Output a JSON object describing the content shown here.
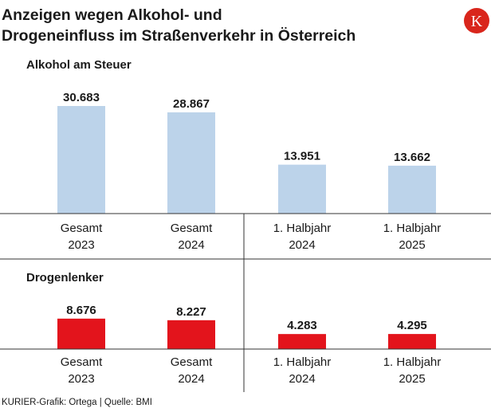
{
  "title_lines": [
    "Anzeigen wegen Alkohol- und",
    "Drogeneinfluss im Straßenverkehr in Österreich"
  ],
  "logo_letter": "K",
  "colors": {
    "alcohol": "#bcd3ea",
    "drugs": "#e3141c",
    "logo": "#d9261c",
    "axis": "#333333"
  },
  "chart_data": [
    {
      "type": "bar",
      "title": "Alkohol am Steuer",
      "categories": [
        [
          "Gesamt",
          "2023"
        ],
        [
          "Gesamt",
          "2024"
        ],
        [
          "1. Halbjahr",
          "2024"
        ],
        [
          "1. Halbjahr",
          "2025"
        ]
      ],
      "values": [
        30683,
        28867,
        13951,
        13662
      ],
      "value_labels": [
        "30.683",
        "28.867",
        "13.951",
        "13.662"
      ],
      "ylim": [
        0,
        34000
      ]
    },
    {
      "type": "bar",
      "title": "Drogenlenker",
      "categories": [
        [
          "Gesamt",
          "2023"
        ],
        [
          "Gesamt",
          "2024"
        ],
        [
          "1. Halbjahr",
          "2024"
        ],
        [
          "1. Halbjahr",
          "2025"
        ]
      ],
      "values": [
        8676,
        8227,
        4283,
        4295
      ],
      "value_labels": [
        "8.676",
        "8.227",
        "4.283",
        "4.295"
      ],
      "ylim": [
        0,
        34000
      ]
    }
  ],
  "source": "KURIER-Grafik: Ortega | Quelle: BMI"
}
